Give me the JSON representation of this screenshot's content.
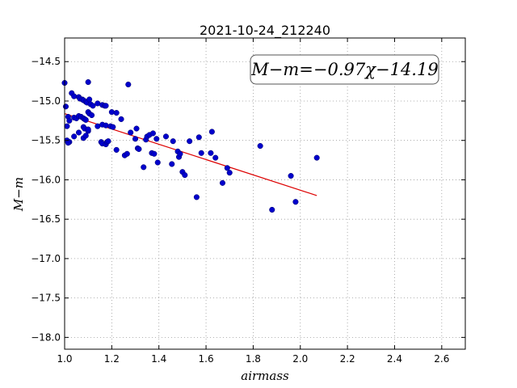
{
  "chart_data": {
    "type": "scatter",
    "title": "2021-10-24_212240",
    "xlabel": "airmass",
    "ylabel": "M−m",
    "xlim": [
      1.0,
      2.7
    ],
    "ylim": [
      -18.15,
      -14.2
    ],
    "y_inverted": true,
    "grid": true,
    "xticks": [
      "1.0",
      "1.2",
      "1.4",
      "1.6",
      "1.8",
      "2.0",
      "2.2",
      "2.4",
      "2.6"
    ],
    "xtick_values": [
      1.0,
      1.2,
      1.4,
      1.6,
      1.8,
      2.0,
      2.2,
      2.4,
      2.6
    ],
    "yticks": [
      "−14.5",
      "−15.0",
      "−15.5",
      "−16.0",
      "−16.5",
      "−17.0",
      "−17.5",
      "−18.0"
    ],
    "ytick_values": [
      -14.5,
      -15.0,
      -15.5,
      -16.0,
      -16.5,
      -17.0,
      -17.5,
      -18.0
    ],
    "annotation": "M−m=−0.97χ−14.19",
    "fit_line": {
      "x": [
        1.0,
        2.07
      ],
      "y": [
        -15.16,
        -16.2
      ]
    },
    "colors": {
      "points": "#0000cc",
      "fit": "#dd0000",
      "grid": "#999999"
    },
    "series": [
      {
        "x": [
          1.0,
          1.005,
          1.03,
          1.04,
          1.06,
          1.065,
          1.075,
          1.08,
          1.09,
          1.095,
          1.1,
          1.105,
          1.11,
          1.12,
          1.14,
          1.16,
          1.17,
          1.175,
          1.2,
          1.22,
          1.24,
          1.27,
          1.015,
          1.02,
          1.04,
          1.05,
          1.06,
          1.07,
          1.08,
          1.085,
          1.09,
          1.1,
          1.105,
          1.115,
          1.01,
          1.02,
          1.04,
          1.06,
          1.08,
          1.085,
          1.1,
          1.1,
          1.01,
          1.015,
          1.08,
          1.09,
          1.14,
          1.155,
          1.16,
          1.175,
          1.18,
          1.185,
          1.16,
          1.175,
          1.195,
          1.205,
          1.22,
          1.255,
          1.265,
          1.28,
          1.3,
          1.305,
          1.31,
          1.315,
          1.335,
          1.345,
          1.35,
          1.36,
          1.37,
          1.375,
          1.38,
          1.39,
          1.395,
          1.43,
          1.455,
          1.46,
          1.48,
          1.485,
          1.49,
          1.5,
          1.51,
          1.53,
          1.56,
          1.57,
          1.58,
          1.62,
          1.625,
          1.64,
          1.67,
          1.69,
          1.7,
          1.83,
          1.88,
          1.96,
          1.98,
          2.07
        ],
        "y": [
          -14.77,
          -15.07,
          -14.9,
          -14.94,
          -14.95,
          -14.97,
          -14.98,
          -14.99,
          -15.01,
          -15.02,
          -14.76,
          -14.98,
          -15.04,
          -15.06,
          -15.03,
          -15.05,
          -15.06,
          -15.06,
          -15.14,
          -15.15,
          -15.23,
          -14.79,
          -15.2,
          -15.25,
          -15.21,
          -15.22,
          -15.19,
          -15.2,
          -15.22,
          -15.23,
          -15.24,
          -15.14,
          -15.16,
          -15.18,
          -15.32,
          -15.52,
          -15.45,
          -15.4,
          -15.33,
          -15.35,
          -15.38,
          -15.36,
          -15.5,
          -15.53,
          -15.47,
          -15.44,
          -15.32,
          -15.52,
          -15.54,
          -15.55,
          -15.52,
          -15.51,
          -15.3,
          -15.31,
          -15.32,
          -15.33,
          -15.62,
          -15.69,
          -15.67,
          -15.4,
          -15.48,
          -15.35,
          -15.6,
          -15.61,
          -15.84,
          -15.49,
          -15.45,
          -15.43,
          -15.66,
          -15.41,
          -15.67,
          -15.48,
          -15.78,
          -15.45,
          -15.8,
          -15.51,
          -15.64,
          -15.71,
          -15.67,
          -15.9,
          -15.94,
          -15.51,
          -16.22,
          -15.46,
          -15.66,
          -15.66,
          -15.39,
          -15.72,
          -16.04,
          -15.85,
          -15.91,
          -15.57,
          -16.38,
          -15.95,
          -16.28,
          -15.72
        ]
      }
    ]
  }
}
